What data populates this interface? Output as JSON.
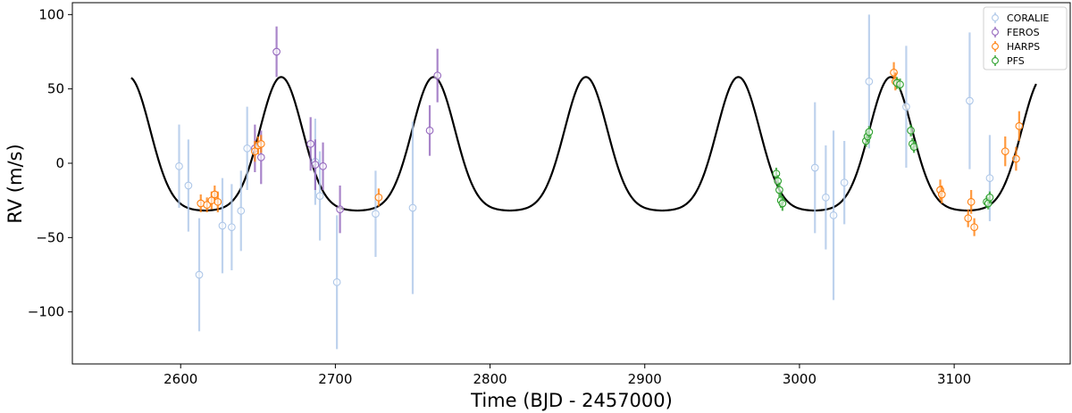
{
  "chart_data": {
    "type": "scatter",
    "title": "",
    "xlabel": "Time (BJD - 2457000)",
    "ylabel": "RV (m/s)",
    "xlim": [
      2530,
      3175
    ],
    "ylim": [
      -135,
      108
    ],
    "xticks": [
      2600,
      2700,
      2800,
      2900,
      3000,
      3100
    ],
    "yticks": [
      -100,
      -50,
      0,
      50,
      100
    ],
    "grid": false,
    "legend": "top-right",
    "model": {
      "name": "",
      "color": "#000000",
      "x_start": 2568,
      "x_end": 3153,
      "min": -32,
      "max": 58,
      "peaks": [
        2665,
        2763,
        2862,
        2961,
        3059
      ]
    },
    "series": [
      {
        "name": "CORALIE",
        "color": "#aec7e8",
        "points": [
          {
            "x": 2599,
            "y": -2,
            "err": 28
          },
          {
            "x": 2605,
            "y": -15,
            "err": 31
          },
          {
            "x": 2612,
            "y": -75,
            "err": 38
          },
          {
            "x": 2627,
            "y": -42,
            "err": 32
          },
          {
            "x": 2633,
            "y": -43,
            "err": 29
          },
          {
            "x": 2639,
            "y": -32,
            "err": 27
          },
          {
            "x": 2643,
            "y": 10,
            "err": 28
          },
          {
            "x": 2687,
            "y": 1,
            "err": 29
          },
          {
            "x": 2690,
            "y": -22,
            "err": 30
          },
          {
            "x": 2701,
            "y": -80,
            "err": 45
          },
          {
            "x": 2726,
            "y": -34,
            "err": 29
          },
          {
            "x": 2750,
            "y": -30,
            "err": 58
          },
          {
            "x": 3010,
            "y": -3,
            "err": 44
          },
          {
            "x": 3017,
            "y": -23,
            "err": 35
          },
          {
            "x": 3022,
            "y": -35,
            "err": 57
          },
          {
            "x": 3029,
            "y": -13,
            "err": 28
          },
          {
            "x": 3045,
            "y": 55,
            "err": 45
          },
          {
            "x": 3069,
            "y": 38,
            "err": 41
          },
          {
            "x": 3110,
            "y": 42,
            "err": 46
          },
          {
            "x": 3123,
            "y": -10,
            "err": 29
          }
        ]
      },
      {
        "name": "FEROS",
        "color": "#9467bd",
        "points": [
          {
            "x": 2648,
            "y": 10,
            "err": 16
          },
          {
            "x": 2652,
            "y": 4,
            "err": 18
          },
          {
            "x": 2662,
            "y": 75,
            "err": 17
          },
          {
            "x": 2684,
            "y": 13,
            "err": 18
          },
          {
            "x": 2687,
            "y": -1,
            "err": 17
          },
          {
            "x": 2692,
            "y": -2,
            "err": 16
          },
          {
            "x": 2703,
            "y": -31,
            "err": 16
          },
          {
            "x": 2761,
            "y": 22,
            "err": 17
          },
          {
            "x": 2766,
            "y": 59,
            "err": 18
          }
        ]
      },
      {
        "name": "HARPS",
        "color": "#ff7f0e",
        "points": [
          {
            "x": 2613,
            "y": -27,
            "err": 6
          },
          {
            "x": 2617,
            "y": -28,
            "err": 5
          },
          {
            "x": 2620,
            "y": -25,
            "err": 6
          },
          {
            "x": 2622,
            "y": -21,
            "err": 6
          },
          {
            "x": 2624,
            "y": -26,
            "err": 7
          },
          {
            "x": 2648,
            "y": 8,
            "err": 7
          },
          {
            "x": 2650,
            "y": 12,
            "err": 6
          },
          {
            "x": 2652,
            "y": 13,
            "err": 6
          },
          {
            "x": 2728,
            "y": -23,
            "err": 6
          },
          {
            "x": 3061,
            "y": 61,
            "err": 7
          },
          {
            "x": 3062,
            "y": 55,
            "err": 6
          },
          {
            "x": 3091,
            "y": -18,
            "err": 7
          },
          {
            "x": 3092,
            "y": -21,
            "err": 6
          },
          {
            "x": 3109,
            "y": -37,
            "err": 6
          },
          {
            "x": 3111,
            "y": -26,
            "err": 8
          },
          {
            "x": 3113,
            "y": -43,
            "err": 6
          },
          {
            "x": 3133,
            "y": 8,
            "err": 10
          },
          {
            "x": 3140,
            "y": 3,
            "err": 8
          },
          {
            "x": 3142,
            "y": 25,
            "err": 10
          }
        ]
      },
      {
        "name": "PFS",
        "color": "#2ca02c",
        "points": [
          {
            "x": 2985,
            "y": -7,
            "err": 4
          },
          {
            "x": 2986,
            "y": -12,
            "err": 4
          },
          {
            "x": 2987,
            "y": -18,
            "err": 5
          },
          {
            "x": 2988,
            "y": -25,
            "err": 5
          },
          {
            "x": 2989,
            "y": -27,
            "err": 5
          },
          {
            "x": 3043,
            "y": 15,
            "err": 4
          },
          {
            "x": 3044,
            "y": 18,
            "err": 4
          },
          {
            "x": 3045,
            "y": 21,
            "err": 4
          },
          {
            "x": 3063,
            "y": 54,
            "err": 4
          },
          {
            "x": 3065,
            "y": 53,
            "err": 4
          },
          {
            "x": 3072,
            "y": 22,
            "err": 4
          },
          {
            "x": 3073,
            "y": 13,
            "err": 4
          },
          {
            "x": 3074,
            "y": 11,
            "err": 4
          },
          {
            "x": 3121,
            "y": -26,
            "err": 4
          },
          {
            "x": 3122,
            "y": -27,
            "err": 4
          },
          {
            "x": 3123,
            "y": -23,
            "err": 4
          }
        ]
      }
    ]
  }
}
